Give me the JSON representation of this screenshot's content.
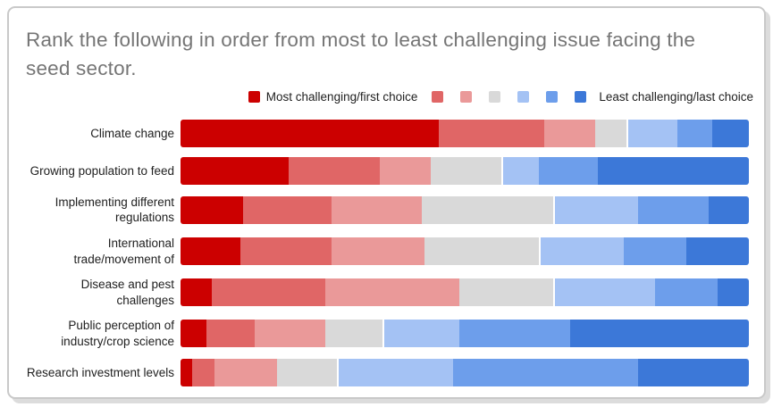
{
  "chart": {
    "title": "Rank the following in order from most to least challenging issue facing the seed sector.",
    "legend": {
      "first_label": "Most challenging/first choice",
      "last_label": "Least challenging/last choice"
    },
    "colors": {
      "title_text": "#757575",
      "label_text": "#212121",
      "card_border": "#c9c9c9",
      "card_background": "#ffffff"
    }
  },
  "chart_data": {
    "type": "bar",
    "subtype": "horizontal-stacked-100-percent",
    "title": "Rank the following in order from most to least challenging issue facing the seed sector.",
    "xlabel": "",
    "ylabel": "",
    "xlim": [
      0,
      100
    ],
    "axes_visible": false,
    "grid": false,
    "legend_position": "top",
    "legend_entries_visible": [
      "Most challenging/first choice",
      "Least challenging/last choice"
    ],
    "categories": [
      "Climate change",
      "Growing population to feed",
      "Implementing different regulations",
      "International trade/movement of",
      "Disease and pest challenges",
      "Public perception of industry/crop science",
      "Research investment levels"
    ],
    "series": [
      {
        "name": "Rank 1 - most challenging/first choice",
        "color": "#cc0000",
        "values": [
          45.5,
          19.0,
          11.0,
          10.5,
          5.5,
          4.5,
          2.0
        ]
      },
      {
        "name": "Rank 2",
        "color": "#e06666",
        "values": [
          18.5,
          16.0,
          15.5,
          16.0,
          20.0,
          8.5,
          4.0
        ]
      },
      {
        "name": "Rank 3",
        "color": "#ea9999",
        "values": [
          9.0,
          9.0,
          16.0,
          16.5,
          23.5,
          12.5,
          11.0
        ]
      },
      {
        "name": "Rank 4",
        "color": "#d9d9d9",
        "values": [
          5.5,
          12.5,
          23.0,
          20.0,
          16.5,
          10.0,
          10.5
        ]
      },
      {
        "name": "Rank 5",
        "color": "#a4c2f4",
        "values": [
          9.0,
          6.5,
          15.0,
          15.0,
          18.0,
          13.5,
          20.5
        ]
      },
      {
        "name": "Rank 6",
        "color": "#6d9eeb",
        "values": [
          6.0,
          10.5,
          12.5,
          11.0,
          11.0,
          19.5,
          32.5
        ]
      },
      {
        "name": "Rank 7 - least challenging/last choice",
        "color": "#3c78d8",
        "values": [
          6.5,
          26.5,
          7.0,
          11.0,
          5.5,
          31.5,
          19.5
        ]
      }
    ]
  }
}
